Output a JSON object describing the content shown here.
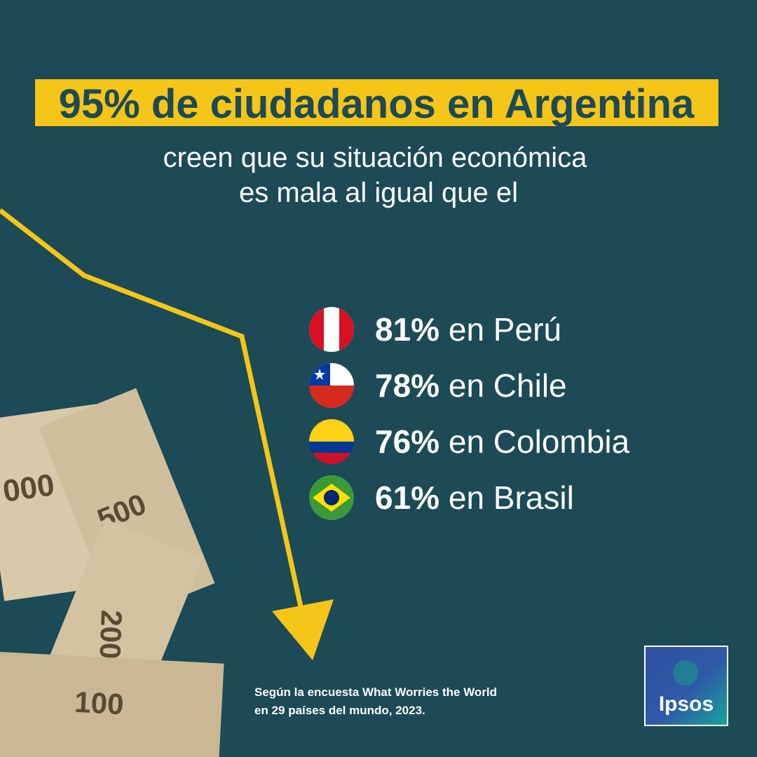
{
  "headline": "95% de ciudadanos en Argentina",
  "subheadline": [
    "creen que su situación económica",
    "es mala al igual que el"
  ],
  "items": [
    {
      "percent": "81%",
      "country": "en Perú"
    },
    {
      "percent": "78%",
      "country": "en Chile"
    },
    {
      "percent": "76%",
      "country": "en Colombia"
    },
    {
      "percent": "61%",
      "country": "en Brasil"
    }
  ],
  "source": [
    "Según la encuesta What Worries the World",
    "en 29 países del mundo, 2023."
  ],
  "logo": "Ipsos",
  "banknotes": [
    "000",
    "500",
    "200",
    "100"
  ]
}
